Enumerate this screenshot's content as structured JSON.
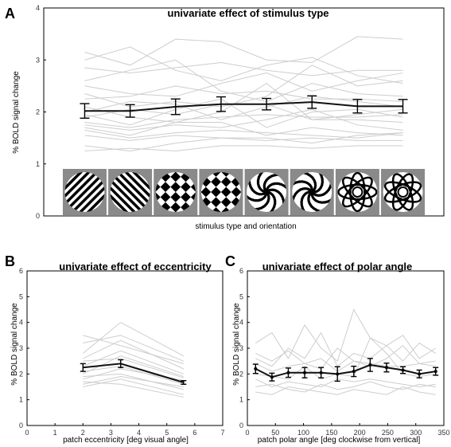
{
  "chart_data": [
    {
      "type": "line",
      "panel_label": "A",
      "title": "univariate effect of stimulus type",
      "xlabel": "stimulus type and orientation",
      "ylabel": "% BOLD signal change",
      "ylim": [
        0,
        4
      ],
      "yticks": [
        "0",
        "1",
        "2",
        "3",
        "4"
      ],
      "x": [
        1,
        2,
        3,
        4,
        5,
        6,
        7,
        8
      ],
      "categories_icons": [
        "oblique-grating-a",
        "oblique-grating-b",
        "checkerboard-plaid-a",
        "checkerboard-plaid-b",
        "spiral-a",
        "spiral-b",
        "rose-a",
        "rose-b"
      ],
      "mean": [
        2.02,
        2.02,
        2.1,
        2.15,
        2.15,
        2.19,
        2.11,
        2.11
      ],
      "error": [
        0.14,
        0.12,
        0.15,
        0.14,
        0.11,
        0.12,
        0.13,
        0.13
      ],
      "subjects": [
        [
          3.15,
          2.9,
          3.4,
          3.35,
          3.0,
          2.95,
          3.45,
          3.4
        ],
        [
          3.0,
          3.25,
          2.8,
          2.6,
          2.9,
          3.05,
          2.7,
          2.55
        ],
        [
          2.85,
          2.75,
          2.85,
          2.95,
          2.8,
          2.7,
          2.8,
          2.8
        ],
        [
          2.6,
          2.8,
          3.0,
          2.4,
          2.2,
          2.55,
          2.35,
          2.3
        ],
        [
          2.5,
          2.35,
          2.3,
          2.55,
          2.75,
          2.4,
          2.6,
          2.75
        ],
        [
          2.35,
          2.1,
          2.2,
          2.1,
          2.3,
          2.9,
          2.5,
          2.6
        ],
        [
          2.25,
          2.3,
          2.5,
          2.35,
          2.4,
          2.25,
          2.25,
          2.2
        ],
        [
          2.1,
          1.9,
          1.8,
          2.0,
          2.55,
          1.85,
          1.95,
          2.05
        ],
        [
          2.0,
          2.2,
          2.15,
          1.85,
          2.1,
          2.3,
          2.2,
          2.1
        ],
        [
          1.95,
          1.75,
          2.05,
          2.25,
          1.7,
          2.0,
          2.05,
          1.9
        ],
        [
          1.9,
          2.05,
          1.95,
          2.15,
          2.15,
          1.85,
          1.85,
          1.8
        ],
        [
          1.8,
          1.7,
          1.85,
          1.9,
          1.95,
          1.9,
          1.9,
          1.95
        ],
        [
          1.75,
          1.65,
          1.75,
          1.7,
          1.85,
          2.05,
          1.75,
          1.65
        ],
        [
          1.7,
          1.55,
          1.8,
          1.8,
          1.55,
          1.7,
          1.6,
          1.55
        ],
        [
          1.65,
          1.5,
          1.6,
          1.65,
          1.6,
          1.55,
          1.5,
          1.6
        ],
        [
          1.55,
          1.45,
          1.55,
          1.5,
          1.45,
          1.5,
          1.45,
          1.45
        ],
        [
          1.35,
          1.25,
          1.4,
          1.5,
          1.5,
          1.4,
          1.55,
          1.6
        ],
        [
          1.25,
          1.3,
          1.25,
          1.35,
          1.35,
          1.3,
          1.35,
          1.35
        ]
      ]
    },
    {
      "type": "line",
      "panel_label": "B",
      "title": "univariate effect of eccentricity",
      "xlabel": "patch eccentricity [deg visual angle]",
      "ylabel": "% BOLD signal change",
      "xlim": [
        0,
        7
      ],
      "ylim": [
        0,
        6
      ],
      "xticks": [
        "0",
        "1",
        "2",
        "3",
        "4",
        "5",
        "6",
        "7"
      ],
      "yticks": [
        "0",
        "1",
        "2",
        "3",
        "4",
        "5",
        "6"
      ],
      "x": [
        2.0,
        3.35,
        5.6
      ],
      "mean": [
        2.25,
        2.4,
        1.67
      ],
      "error": [
        0.15,
        0.15,
        0.07
      ],
      "subjects": [
        [
          2.8,
          4.0,
          2.7
        ],
        [
          3.2,
          3.5,
          2.5
        ],
        [
          3.5,
          3.1,
          2.4
        ],
        [
          2.6,
          3.3,
          2.2
        ],
        [
          2.3,
          2.9,
          2.0
        ],
        [
          2.5,
          2.6,
          1.85
        ],
        [
          2.0,
          2.7,
          1.9
        ],
        [
          2.1,
          2.3,
          1.6
        ],
        [
          1.8,
          2.2,
          1.75
        ],
        [
          1.9,
          2.0,
          1.4
        ],
        [
          1.6,
          1.9,
          1.5
        ],
        [
          1.5,
          1.8,
          1.2
        ],
        [
          1.7,
          1.6,
          1.1
        ]
      ]
    },
    {
      "type": "line",
      "panel_label": "C",
      "title": "univariate effect of polar angle",
      "xlabel": "patch polar angle [deg clockwise from vertical]",
      "ylabel": "% BOLD signal change",
      "xlim": [
        0,
        360
      ],
      "ylim": [
        0,
        6
      ],
      "xticks": [
        "0",
        "50",
        "100",
        "150",
        "200",
        "250",
        "300",
        "350"
      ],
      "yticks": [
        "0",
        "1",
        "2",
        "3",
        "4",
        "5",
        "6"
      ],
      "x": [
        15,
        45,
        75,
        105,
        135,
        165,
        195,
        225,
        255,
        285,
        315,
        345
      ],
      "mean": [
        2.2,
        1.88,
        2.05,
        2.05,
        2.05,
        2.0,
        2.1,
        2.35,
        2.25,
        2.15,
        2.0,
        2.1
      ],
      "error": [
        0.18,
        0.15,
        0.18,
        0.2,
        0.2,
        0.28,
        0.2,
        0.25,
        0.17,
        0.13,
        0.15,
        0.15
      ],
      "subjects": [
        [
          3.2,
          3.6,
          2.6,
          3.9,
          3.0,
          2.5,
          4.5,
          3.4,
          3.1,
          3.5,
          2.6,
          3.0
        ],
        [
          2.6,
          2.3,
          3.0,
          2.6,
          3.6,
          2.3,
          2.8,
          2.6,
          3.1,
          2.5,
          3.2,
          2.8
        ],
        [
          2.4,
          2.1,
          2.3,
          2.4,
          2.6,
          2.1,
          2.5,
          2.4,
          2.3,
          2.3,
          2.4,
          2.3
        ],
        [
          2.0,
          1.9,
          1.8,
          2.3,
          1.8,
          2.0,
          1.9,
          3.4,
          2.8,
          2.0,
          1.9,
          2.0
        ],
        [
          1.8,
          1.5,
          1.7,
          1.6,
          1.5,
          1.8,
          1.7,
          1.8,
          1.7,
          1.6,
          1.5,
          1.6
        ],
        [
          1.5,
          1.6,
          1.4,
          1.3,
          1.6,
          1.4,
          1.5,
          1.7,
          1.5,
          1.4,
          1.6,
          1.5
        ],
        [
          1.3,
          1.2,
          1.5,
          1.4,
          1.3,
          1.2,
          1.4,
          1.3,
          1.2,
          1.5,
          1.3,
          1.2
        ],
        [
          2.8,
          2.5,
          2.9,
          2.4,
          2.2,
          3.0,
          2.5,
          2.3,
          2.6,
          3.1,
          2.4,
          2.5
        ]
      ]
    }
  ]
}
